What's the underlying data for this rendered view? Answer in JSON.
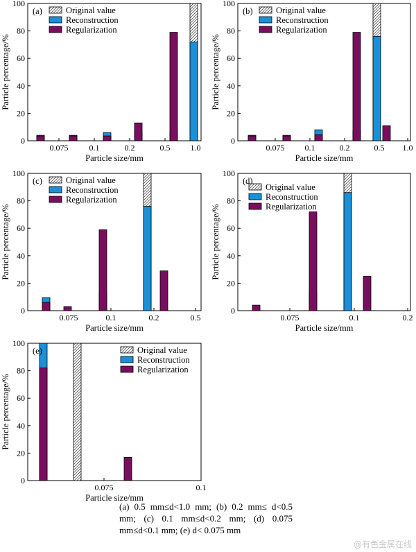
{
  "colors": {
    "reconstruction": "#1a90d8",
    "regularization": "#7a0e5e",
    "original_fill": "#ffffff",
    "axis": "#000000"
  },
  "chart_data": [
    {
      "type": "bar",
      "panel": "(a)",
      "xlabel": "Particle size/mm",
      "ylabel": "Particle percentage/%",
      "ylim": [
        0,
        100
      ],
      "yticks": [
        0,
        20,
        40,
        60,
        80,
        100
      ],
      "xticks": [
        "0.075",
        "0.1",
        "0.2",
        "0.5",
        "1.0"
      ],
      "legend": "top-left",
      "series": [
        {
          "name": "Original value",
          "values": [
            0,
            0,
            0,
            0,
            0,
            100
          ]
        },
        {
          "name": "Reconstruction",
          "values": [
            4,
            4,
            6,
            7,
            7,
            72
          ]
        },
        {
          "name": "Regularization",
          "values": [
            3.5,
            3.5,
            3.5,
            13,
            79,
            0
          ]
        }
      ]
    },
    {
      "type": "bar",
      "panel": "(b)",
      "xlabel": "Particle size/mm",
      "ylabel": "Particle percentage/%",
      "ylim": [
        0,
        100
      ],
      "yticks": [
        0,
        20,
        40,
        60,
        80,
        100
      ],
      "xticks": [
        "0.075",
        "0.1",
        "0.2",
        "0.5",
        "1.0"
      ],
      "legend": "top-left",
      "series": [
        {
          "name": "Original value",
          "values": [
            0,
            0,
            0,
            0,
            100,
            0
          ]
        },
        {
          "name": "Reconstruction",
          "values": [
            4,
            4,
            8,
            7,
            76,
            0
          ]
        },
        {
          "name": "Regularization",
          "values": [
            3.5,
            3.5,
            4.5,
            79,
            0,
            11
          ]
        }
      ]
    },
    {
      "type": "bar",
      "panel": "(c)",
      "xlabel": "Particle size/mm",
      "ylabel": "Particle percentage/%",
      "ylim": [
        0,
        100
      ],
      "yticks": [
        0,
        20,
        40,
        60,
        80,
        100
      ],
      "xticks": [
        "0.075",
        "0.1",
        "0.2",
        "0.5"
      ],
      "legend": "top-left",
      "series": [
        {
          "name": "Original value",
          "values": [
            0,
            0,
            0,
            100,
            0
          ]
        },
        {
          "name": "Reconstruction",
          "values": [
            9.5,
            0,
            14,
            76,
            0
          ]
        },
        {
          "name": "Regularization",
          "values": [
            6,
            3,
            59,
            0,
            29
          ]
        }
      ]
    },
    {
      "type": "bar",
      "panel": "(d)",
      "xlabel": "Particle size/mm",
      "ylabel": "Particle percentage/%",
      "ylim": [
        0,
        100
      ],
      "yticks": [
        0,
        20,
        40,
        60,
        80,
        100
      ],
      "xticks": [
        "0.075",
        "0.1",
        "0.2"
      ],
      "legend": "top-left",
      "series": [
        {
          "name": "Original value",
          "values": [
            0,
            0,
            100,
            0
          ]
        },
        {
          "name": "Reconstruction",
          "values": [
            0,
            14,
            86,
            0
          ]
        },
        {
          "name": "Regularization",
          "values": [
            4,
            72,
            0,
            25
          ]
        }
      ]
    },
    {
      "type": "bar",
      "panel": "(e)",
      "xlabel": "Particle size/mm",
      "ylabel": "Particle percentage/%",
      "ylim": [
        0,
        100
      ],
      "yticks": [
        0,
        20,
        40,
        60,
        80,
        100
      ],
      "xticks": [
        "0.075",
        "0.1"
      ],
      "legend": "top-right",
      "series": [
        {
          "name": "Original value",
          "values": [
            0,
            100,
            0
          ]
        },
        {
          "name": "Reconstruction",
          "values": [
            100,
            0,
            1
          ]
        },
        {
          "name": "Regularization",
          "values": [
            82,
            0,
            17
          ]
        }
      ]
    }
  ],
  "caption": "(a) 0.5 mm≤d<1.0 mm; (b) 0.2 mm≤ d<0.5 mm; (c) 0.1 mm≤d<0.2 mm; (d) 0.075 mm≤d<0.1 mm; (e) d< 0.075 mm",
  "watermark": "@有色金属在线"
}
